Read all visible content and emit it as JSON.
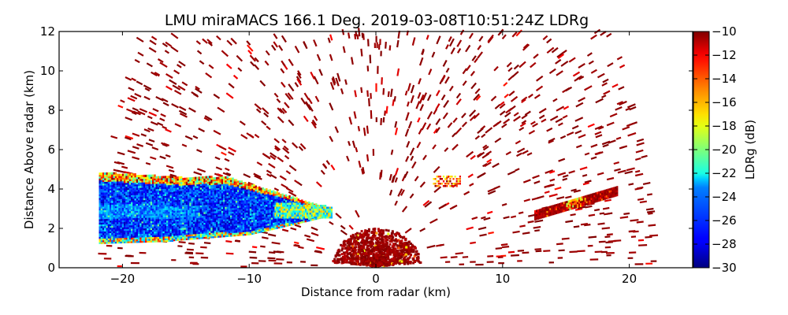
{
  "chart_data": {
    "type": "heatmap",
    "plot_kind": "RHI radar scan (pseudo-color)",
    "title": "LMU miraMACS 166.1 Deg. 2019-03-08T10:51:24Z  LDRg",
    "xlabel": "Distance from radar (km)",
    "ylabel": "Distance Above radar  (km)",
    "xlim": [
      -25,
      25
    ],
    "ylim": [
      0,
      12
    ],
    "xticks": [
      -20,
      -10,
      0,
      10,
      20
    ],
    "xtick_labels": [
      "−20",
      "−10",
      "0",
      "10",
      "20"
    ],
    "yticks": [
      0,
      2,
      4,
      6,
      8,
      10,
      12
    ],
    "ytick_labels": [
      "0",
      "2",
      "4",
      "6",
      "8",
      "10",
      "12"
    ],
    "grid": false,
    "colorbar": {
      "label": "LDRg (dB)",
      "colormap": "jet",
      "range": [
        -30,
        -10
      ],
      "ticks": [
        -10,
        -12,
        -14,
        -16,
        -18,
        -20,
        -22,
        -24,
        -26,
        -28,
        -30
      ],
      "tick_labels": [
        "−10",
        "−12",
        "−14",
        "−16",
        "−18",
        "−20",
        "−22",
        "−24",
        "−26",
        "−28",
        "−30"
      ],
      "placement": "right"
    },
    "scan": {
      "azimuth_deg": 166.1,
      "max_range_km": 22,
      "elevation_range_deg": [
        0,
        180
      ]
    },
    "regions": [
      {
        "name": "cloud-layer-low-ldr",
        "x_km": [
          -22,
          -4
        ],
        "y_km": [
          1.2,
          4.8
        ],
        "ldr_db": [
          -30,
          -24
        ],
        "edge_ldr_db": [
          -22,
          -12
        ]
      },
      {
        "name": "near-radar-clutter",
        "range_km": [
          0,
          3.5
        ],
        "ldr_db": [
          -12,
          -10
        ]
      },
      {
        "name": "right-melting-streak",
        "x_km": [
          12.5,
          19
        ],
        "y_km": [
          2.4,
          3.8
        ],
        "ldr_db": [
          -20,
          -10
        ]
      },
      {
        "name": "mid-patch",
        "x_km": [
          4.5,
          6.5
        ],
        "y_km": [
          4.1,
          4.6
        ],
        "ldr_db": [
          -18,
          -10
        ]
      },
      {
        "name": "scattered-noise-gates",
        "range_km": [
          2,
          22
        ],
        "ldr_db": [
          -12,
          -10
        ]
      }
    ]
  }
}
